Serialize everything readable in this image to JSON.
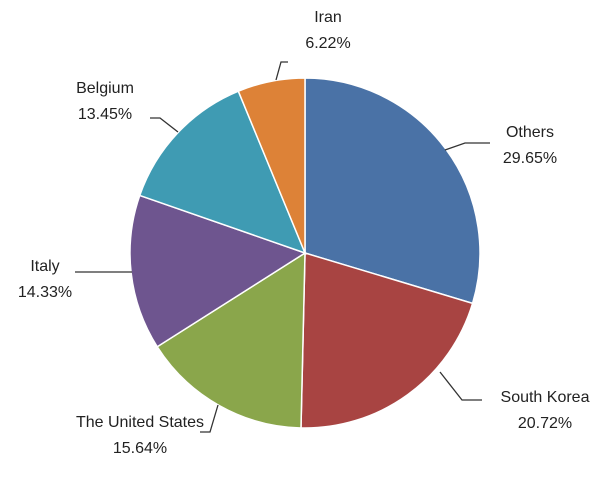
{
  "chart_data": {
    "type": "pie",
    "categories": [
      "Others",
      "South Korea",
      "The United States",
      "Italy",
      "Belgium",
      "Iran"
    ],
    "values": [
      29.65,
      20.72,
      15.64,
      14.33,
      13.45,
      6.22
    ],
    "value_labels": [
      "29.65%",
      "20.72%",
      "15.64%",
      "14.33%",
      "13.45%",
      "6.22%"
    ],
    "colors": [
      "#4a72a6",
      "#a84442",
      "#8aa64b",
      "#6e558f",
      "#3f9bb3",
      "#dd8237"
    ]
  }
}
